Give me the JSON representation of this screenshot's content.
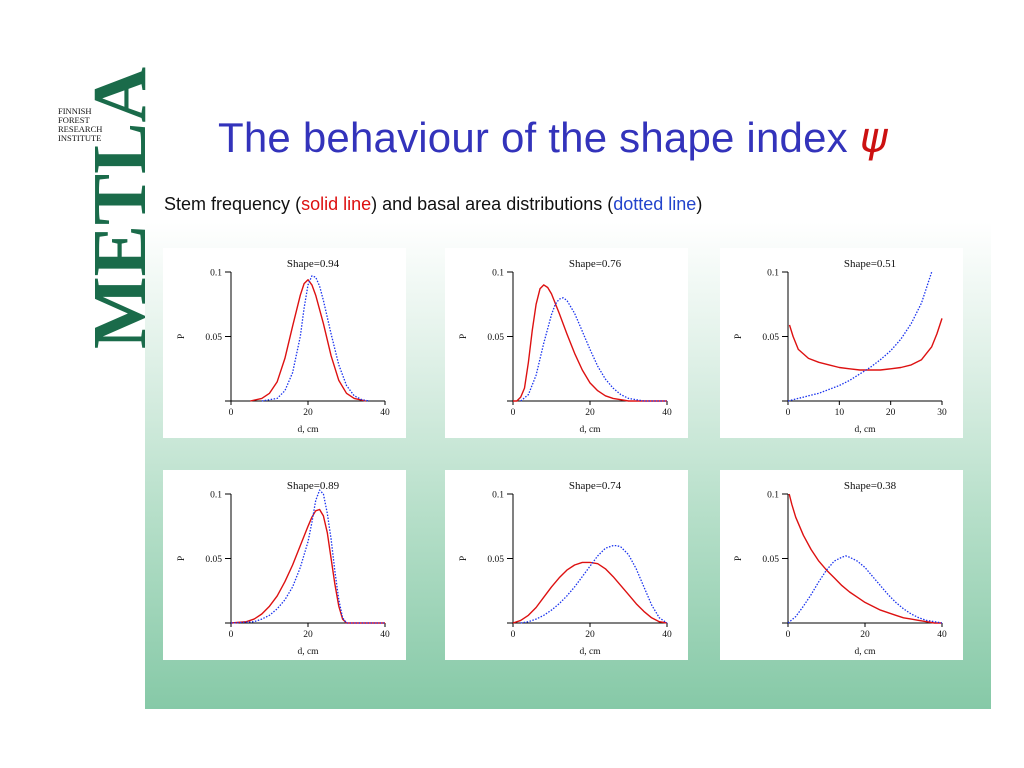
{
  "logo": {
    "word": "METLA",
    "sub_lines": [
      "FINNISH",
      "FOREST",
      "RESEARCH",
      "INSTITUTE"
    ],
    "color": "#1a6b4a"
  },
  "title": {
    "text": "The behaviour of the shape index ",
    "symbol": "ψ"
  },
  "subtitle": {
    "part1": "Stem frequency (",
    "solid_label": "solid line",
    "part2": ") and basal area distributions (",
    "dotted_label": "dotted line",
    "part3": ")"
  },
  "colors": {
    "title": "#3333bb",
    "symbol": "#cc1111",
    "solid": "#dd1111",
    "dotted": "#1a33ee"
  },
  "chart_data": [
    {
      "type": "line",
      "title": "Shape=0.94",
      "xlabel": "d, cm",
      "ylabel": "P",
      "xlim": [
        0,
        40
      ],
      "ylim": [
        0,
        0.1
      ],
      "xticks": [
        0,
        20,
        40
      ],
      "xtick_labels": [
        "0",
        "20",
        "40"
      ],
      "yticks": [
        0.05,
        0.1
      ],
      "ytick_labels": [
        "0.05",
        "0.1"
      ],
      "series": [
        {
          "style": "solid",
          "x": [
            5,
            8,
            10,
            12,
            14,
            16,
            18,
            19,
            20,
            21,
            22,
            24,
            26,
            28,
            30,
            32,
            35
          ],
          "y": [
            0,
            0.002,
            0.006,
            0.015,
            0.033,
            0.058,
            0.082,
            0.091,
            0.094,
            0.09,
            0.082,
            0.06,
            0.035,
            0.016,
            0.006,
            0.002,
            0
          ]
        },
        {
          "style": "dotted",
          "x": [
            8,
            12,
            14,
            16,
            18,
            19,
            20,
            21,
            22,
            23,
            24,
            26,
            28,
            30,
            32,
            34,
            36
          ],
          "y": [
            0,
            0.002,
            0.008,
            0.022,
            0.05,
            0.072,
            0.09,
            0.097,
            0.096,
            0.089,
            0.078,
            0.052,
            0.028,
            0.012,
            0.004,
            0.001,
            0
          ]
        }
      ]
    },
    {
      "type": "line",
      "title": "Shape=0.76",
      "xlabel": "d, cm",
      "ylabel": "P",
      "xlim": [
        0,
        40
      ],
      "ylim": [
        0,
        0.1
      ],
      "xticks": [
        0,
        20,
        40
      ],
      "xtick_labels": [
        "0",
        "20",
        "40"
      ],
      "yticks": [
        0.05,
        0.1
      ],
      "ytick_labels": [
        "0.05",
        "0.1"
      ],
      "series": [
        {
          "style": "solid",
          "x": [
            0,
            1,
            2,
            3,
            4,
            5,
            6,
            7,
            8,
            9,
            10,
            12,
            14,
            16,
            18,
            20,
            22,
            24,
            26,
            28,
            30,
            32,
            34,
            36,
            40
          ],
          "y": [
            0,
            0,
            0.003,
            0.01,
            0.03,
            0.055,
            0.075,
            0.087,
            0.09,
            0.088,
            0.083,
            0.068,
            0.052,
            0.037,
            0.024,
            0.014,
            0.008,
            0.004,
            0.002,
            0.001,
            0,
            0,
            0,
            0,
            0
          ]
        },
        {
          "style": "dotted",
          "x": [
            2,
            4,
            6,
            8,
            10,
            11,
            12,
            13,
            14,
            16,
            18,
            20,
            22,
            24,
            26,
            28,
            30,
            32,
            34,
            36,
            40
          ],
          "y": [
            0,
            0.005,
            0.02,
            0.045,
            0.067,
            0.075,
            0.079,
            0.08,
            0.078,
            0.068,
            0.054,
            0.04,
            0.027,
            0.017,
            0.01,
            0.005,
            0.002,
            0.001,
            0,
            0,
            0
          ]
        }
      ]
    },
    {
      "type": "line",
      "title": "Shape=0.51",
      "xlabel": "d, cm",
      "ylabel": "P",
      "xlim": [
        0,
        30
      ],
      "ylim": [
        0,
        0.1
      ],
      "xticks": [
        0,
        10,
        20,
        30
      ],
      "xtick_labels": [
        "0",
        "10",
        "20",
        "30"
      ],
      "yticks": [
        0.05,
        0.1
      ],
      "ytick_labels": [
        "0.05",
        "0.1"
      ],
      "series": [
        {
          "style": "solid",
          "x": [
            0.3,
            1,
            2,
            4,
            6,
            8,
            10,
            12,
            14,
            16,
            18,
            20,
            22,
            24,
            26,
            28,
            29,
            30
          ],
          "y": [
            0.059,
            0.05,
            0.04,
            0.033,
            0.03,
            0.028,
            0.026,
            0.025,
            0.024,
            0.024,
            0.024,
            0.025,
            0.026,
            0.028,
            0.032,
            0.042,
            0.052,
            0.064
          ]
        },
        {
          "style": "dotted",
          "x": [
            0,
            2,
            4,
            6,
            8,
            10,
            12,
            14,
            16,
            18,
            20,
            22,
            24,
            26,
            27,
            28
          ],
          "y": [
            0,
            0.002,
            0.004,
            0.006,
            0.009,
            0.012,
            0.016,
            0.021,
            0.026,
            0.032,
            0.039,
            0.048,
            0.06,
            0.076,
            0.088,
            0.1
          ]
        }
      ]
    },
    {
      "type": "line",
      "title": "Shape=0.89",
      "xlabel": "d, cm",
      "ylabel": "P",
      "xlim": [
        0,
        40
      ],
      "ylim": [
        0,
        0.1
      ],
      "xticks": [
        0,
        20,
        40
      ],
      "xtick_labels": [
        "0",
        "20",
        "40"
      ],
      "yticks": [
        0.05,
        0.1
      ],
      "ytick_labels": [
        "0.05",
        "0.1"
      ],
      "series": [
        {
          "style": "solid",
          "x": [
            0,
            4,
            6,
            8,
            10,
            12,
            14,
            16,
            18,
            20,
            21,
            22,
            23,
            24,
            25,
            26,
            27,
            28,
            29,
            30,
            40
          ],
          "y": [
            0,
            0.001,
            0.003,
            0.007,
            0.013,
            0.021,
            0.032,
            0.045,
            0.06,
            0.075,
            0.082,
            0.087,
            0.088,
            0.083,
            0.07,
            0.05,
            0.03,
            0.013,
            0.003,
            0,
            0
          ]
        },
        {
          "style": "dotted",
          "x": [
            0,
            6,
            8,
            10,
            12,
            14,
            16,
            18,
            20,
            21,
            22,
            23,
            24,
            25,
            26,
            27,
            28,
            29,
            30,
            40
          ],
          "y": [
            0,
            0.001,
            0.003,
            0.006,
            0.011,
            0.018,
            0.028,
            0.043,
            0.063,
            0.078,
            0.095,
            0.103,
            0.1,
            0.085,
            0.065,
            0.04,
            0.018,
            0.004,
            0,
            0
          ]
        }
      ]
    },
    {
      "type": "line",
      "title": "Shape=0.74",
      "xlabel": "d, cm",
      "ylabel": "P",
      "xlim": [
        0,
        40
      ],
      "ylim": [
        0,
        0.1
      ],
      "xticks": [
        0,
        20,
        40
      ],
      "xtick_labels": [
        "0",
        "20",
        "40"
      ],
      "yticks": [
        0.05,
        0.1
      ],
      "ytick_labels": [
        "0.05",
        "0.1"
      ],
      "series": [
        {
          "style": "solid",
          "x": [
            0,
            2,
            4,
            6,
            8,
            10,
            12,
            14,
            16,
            18,
            20,
            22,
            24,
            26,
            28,
            30,
            32,
            34,
            36,
            38,
            40
          ],
          "y": [
            0,
            0.002,
            0.006,
            0.012,
            0.02,
            0.028,
            0.035,
            0.041,
            0.045,
            0.047,
            0.047,
            0.046,
            0.042,
            0.036,
            0.029,
            0.022,
            0.015,
            0.009,
            0.004,
            0.001,
            0
          ]
        },
        {
          "style": "dotted",
          "x": [
            2,
            4,
            6,
            8,
            10,
            12,
            14,
            16,
            18,
            20,
            22,
            24,
            26,
            27,
            28,
            30,
            32,
            34,
            36,
            38,
            40
          ],
          "y": [
            0,
            0.001,
            0.003,
            0.006,
            0.01,
            0.015,
            0.021,
            0.028,
            0.036,
            0.044,
            0.052,
            0.058,
            0.06,
            0.06,
            0.059,
            0.053,
            0.042,
            0.028,
            0.014,
            0.004,
            0
          ]
        }
      ]
    },
    {
      "type": "line",
      "title": "Shape=0.38",
      "xlabel": "d, cm",
      "ylabel": "P",
      "xlim": [
        0,
        40
      ],
      "ylim": [
        0,
        0.1
      ],
      "xticks": [
        0,
        20,
        40
      ],
      "xtick_labels": [
        "0",
        "20",
        "40"
      ],
      "yticks": [
        0.05,
        0.1
      ],
      "ytick_labels": [
        "0.05",
        "0.1"
      ],
      "series": [
        {
          "style": "solid",
          "x": [
            0.3,
            1,
            2,
            4,
            6,
            8,
            10,
            12,
            14,
            16,
            18,
            20,
            22,
            24,
            26,
            28,
            30,
            32,
            34,
            36,
            38,
            40
          ],
          "y": [
            0.1,
            0.092,
            0.082,
            0.068,
            0.057,
            0.048,
            0.041,
            0.035,
            0.029,
            0.024,
            0.02,
            0.016,
            0.013,
            0.01,
            0.008,
            0.006,
            0.004,
            0.003,
            0.002,
            0.001,
            0,
            0
          ]
        },
        {
          "style": "dotted",
          "x": [
            0,
            2,
            4,
            6,
            8,
            10,
            12,
            14,
            15,
            16,
            18,
            20,
            22,
            24,
            26,
            28,
            30,
            32,
            34,
            36,
            38,
            40
          ],
          "y": [
            0,
            0.005,
            0.013,
            0.022,
            0.032,
            0.041,
            0.048,
            0.051,
            0.052,
            0.051,
            0.048,
            0.043,
            0.036,
            0.029,
            0.022,
            0.016,
            0.011,
            0.007,
            0.004,
            0.002,
            0.001,
            0
          ]
        }
      ]
    }
  ]
}
